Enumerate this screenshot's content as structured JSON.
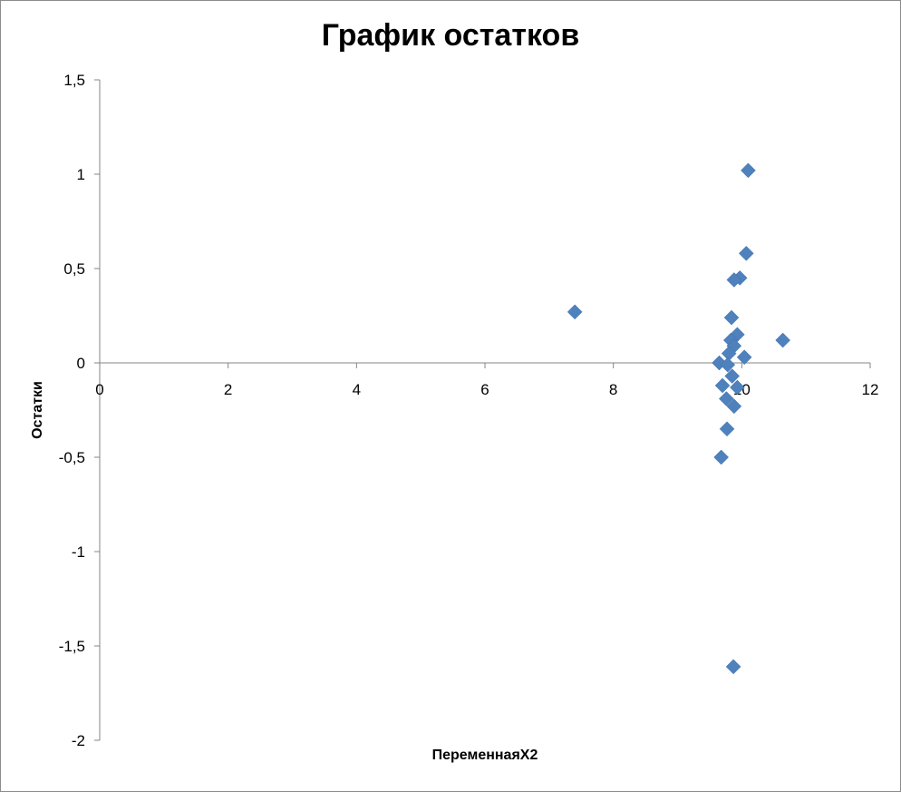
{
  "chart_data": {
    "type": "scatter",
    "title": "График остатков",
    "xlabel": "ПеременнаяX2",
    "ylabel": "Остатки",
    "xlim": [
      0,
      12
    ],
    "ylim": [
      -2,
      1.5
    ],
    "x_ticks": [
      0,
      2,
      4,
      6,
      8,
      10,
      12
    ],
    "x_tick_labels": [
      "0",
      "2",
      "4",
      "6",
      "8",
      "10",
      "12"
    ],
    "y_ticks": [
      1.5,
      1,
      0.5,
      0,
      -0.5,
      -1,
      -1.5,
      -2
    ],
    "y_tick_labels": [
      "1,5",
      "1",
      "0,5",
      "0",
      "-0,5",
      "-1",
      "-1,5",
      "-2"
    ],
    "grid": false,
    "legend": "none",
    "marker": "diamond",
    "marker_color": "#4f81bd",
    "series": [
      {
        "x": [
          7.4,
          10.1,
          10.07,
          9.97,
          9.88,
          9.84,
          10.64,
          9.93,
          9.83,
          9.88,
          9.8,
          10.04,
          9.65,
          9.78,
          9.85,
          9.93,
          9.7,
          9.76,
          9.88,
          9.77,
          9.68,
          9.87
        ],
        "y": [
          0.27,
          1.02,
          0.58,
          0.45,
          0.44,
          0.24,
          0.12,
          0.15,
          0.12,
          0.09,
          0.05,
          0.03,
          0.0,
          -0.01,
          -0.07,
          -0.13,
          -0.12,
          -0.19,
          -0.23,
          -0.35,
          -0.5,
          -1.61
        ]
      }
    ]
  }
}
